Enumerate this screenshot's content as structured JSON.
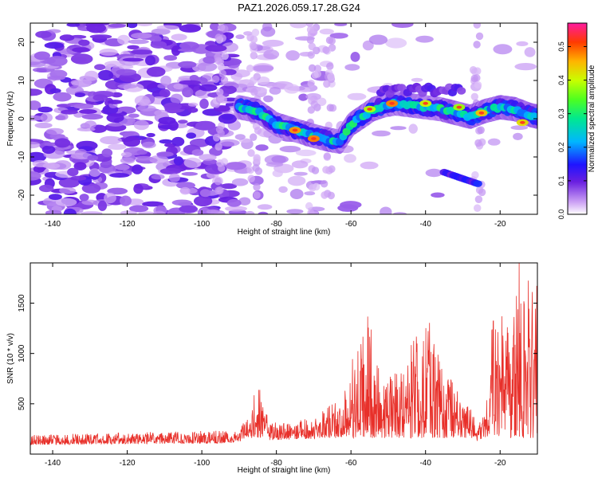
{
  "title": "PAZ1.2026.059.17.28.G24",
  "chart_data": [
    {
      "type": "heatmap",
      "title": "PAZ1.2026.059.17.28.G24",
      "xlabel": "Height of straight line (km)",
      "ylabel": "Frequency (Hz)",
      "xlim": [
        -146,
        -10
      ],
      "ylim": [
        -25,
        25
      ],
      "xticks": [
        -140,
        -120,
        -100,
        -80,
        -60,
        -40,
        -20
      ],
      "yticks": [
        -20,
        -10,
        0,
        10,
        20
      ],
      "colorbar": {
        "label": "Normalized spectral amplitude",
        "range": [
          0,
          0.57
        ],
        "ticks": [
          "0.0",
          "0.1",
          "0.2",
          "0.3",
          "0.4",
          "0.5"
        ],
        "tick_values": [
          0,
          0.1,
          0.2,
          0.3,
          0.4,
          0.5
        ]
      },
      "ridge": {
        "description": "main signal ridge (frequency vs height)",
        "x": [
          -90,
          -85,
          -80,
          -75,
          -70,
          -66,
          -63,
          -60,
          -57,
          -54,
          -51,
          -48,
          -44,
          -40,
          -36,
          -32,
          -28,
          -24,
          -20,
          -16,
          -12,
          -10
        ],
        "y": [
          3,
          2,
          -1.5,
          -3,
          -4.5,
          -5.5,
          -6,
          -1.5,
          0.5,
          2.5,
          3.5,
          4,
          3.5,
          3,
          2.5,
          1.5,
          0.5,
          2,
          3,
          2.5,
          1,
          0.5
        ]
      },
      "secondary_feature": {
        "x": [
          -35,
          -26
        ],
        "y": [
          -14,
          -17
        ]
      }
    },
    {
      "type": "line",
      "xlabel": "Height of straight line (km)",
      "ylabel": "SNR (10 * v/v)",
      "xlim": [
        -146,
        -10
      ],
      "ylim": [
        0,
        1900
      ],
      "xticks": [
        -140,
        -120,
        -100,
        -80,
        -60,
        -40,
        -20
      ],
      "yticks": [
        500,
        1000,
        1500
      ],
      "series": [
        {
          "name": "SNR",
          "color": "#e8302a",
          "envelope_x": [
            -146,
            -90,
            -87,
            -85,
            -82,
            -70,
            -62,
            -59,
            -57,
            -55,
            -52,
            -49,
            -45,
            -42,
            -39,
            -36,
            -32,
            -29,
            -26,
            -24,
            -22,
            -19,
            -17,
            -15,
            -13,
            -11,
            -10
          ],
          "envelope_y": [
            150,
            200,
            400,
            700,
            280,
            320,
            550,
            1000,
            1250,
            1420,
            700,
            750,
            950,
            1200,
            1280,
            900,
            620,
            500,
            250,
            400,
            1300,
            1450,
            1000,
            1900,
            1750,
            1600,
            1700
          ]
        }
      ]
    }
  ]
}
